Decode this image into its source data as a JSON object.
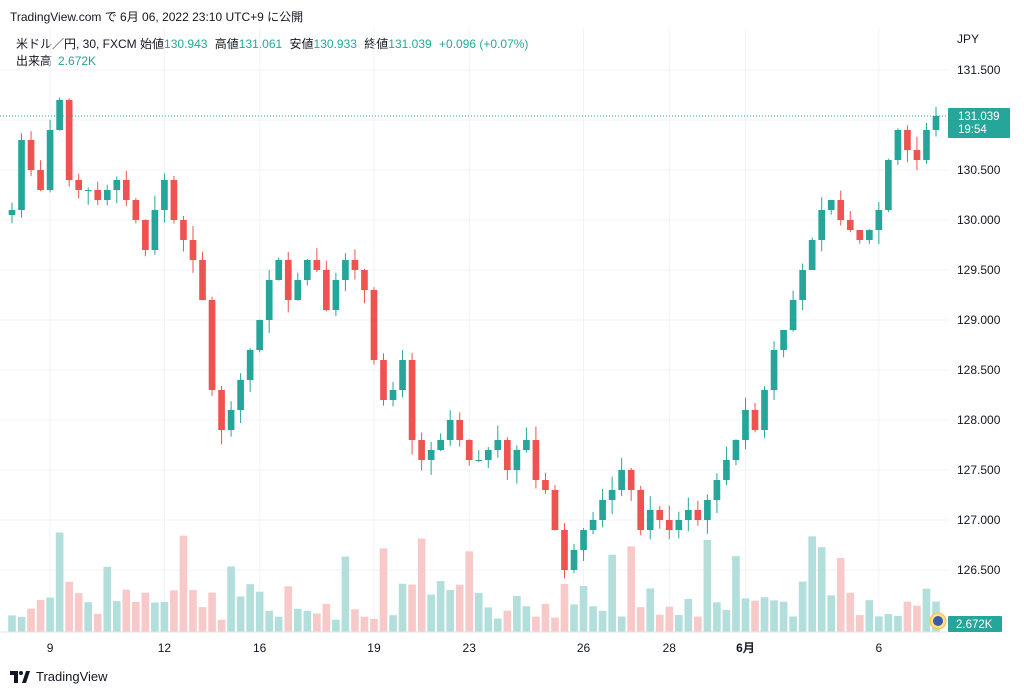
{
  "header": {
    "source_line": "TradingView.com で 6月 06, 2022 23:10 UTC+9 に公開"
  },
  "legend": {
    "symbol": "米ドル／円, 30, FXCM",
    "open_label": "始値",
    "open": "130.943",
    "high_label": "高値",
    "high": "131.061",
    "low_label": "安値",
    "low": "130.933",
    "close_label": "終値",
    "close": "131.039",
    "change": "+0.096 (+0.07%)",
    "volume_label": "出来高",
    "volume": "2.672K"
  },
  "axis": {
    "currency": "JPY",
    "price_ticks": [
      "131.500",
      "130.500",
      "130.000",
      "129.500",
      "129.000",
      "128.500",
      "128.000",
      "127.500",
      "127.000",
      "126.500"
    ],
    "date_ticks": [
      "9",
      "12",
      "16",
      "19",
      "23",
      "26",
      "28",
      "6月",
      "6"
    ]
  },
  "markers": {
    "last_price": "131.039",
    "countdown": "19:54",
    "volume_tag": "2.672K"
  },
  "footer": {
    "brand": "TradingView"
  },
  "colors": {
    "up": "#26a69a",
    "down": "#ef5350",
    "up_vol": "#b2dfdb",
    "down_vol": "#f7c9c8",
    "grid": "#f0f3fa"
  },
  "chart_data": {
    "type": "line",
    "title": "米ドル／円, 30, FXCM",
    "ylabel": "JPY",
    "ylim": [
      126.1,
      131.8
    ],
    "y_ticks": [
      126.5,
      127.0,
      127.5,
      128.0,
      128.5,
      129.0,
      129.5,
      130.0,
      130.5,
      131.5
    ],
    "x_tick_labels": [
      "9",
      "12",
      "16",
      "19",
      "23",
      "26",
      "28",
      "6月",
      "6"
    ],
    "x_tick_index": [
      4,
      16,
      26,
      38,
      48,
      60,
      69,
      77,
      91
    ],
    "grid": true,
    "series": [
      {
        "name": "",
        "values": [
          130.1,
          130.8,
          130.5,
          130.3,
          130.9,
          131.2,
          130.4,
          130.3,
          130.3,
          130.2,
          130.3,
          130.4,
          130.2,
          130.0,
          129.7,
          130.1,
          130.4,
          130.0,
          129.8,
          129.6,
          129.2,
          128.3,
          127.9,
          128.1,
          128.4,
          128.7,
          129.0,
          129.4,
          129.6,
          129.2,
          129.4,
          129.6,
          129.5,
          129.1,
          129.4,
          129.6,
          129.5,
          129.3,
          128.6,
          128.2,
          128.3,
          128.6,
          127.8,
          127.6,
          127.7,
          127.8,
          128.0,
          127.8,
          127.6,
          127.6,
          127.7,
          127.8,
          127.5,
          127.7,
          127.8,
          127.4,
          127.3,
          126.9,
          126.5,
          126.7,
          126.9,
          127.0,
          127.2,
          127.3,
          127.5,
          127.3,
          126.9,
          127.1,
          127.0,
          126.9,
          127.0,
          127.1,
          127.0,
          127.2,
          127.4,
          127.6,
          127.8,
          128.1,
          127.9,
          128.3,
          128.7,
          128.9,
          129.2,
          129.5,
          129.8,
          130.1,
          130.2,
          130.0,
          129.9,
          129.8,
          129.9,
          130.1,
          130.6,
          130.9,
          130.7,
          130.6,
          130.9,
          131.04
        ]
      }
    ],
    "volume_label": "出来高",
    "volume_last": "2.672K"
  }
}
